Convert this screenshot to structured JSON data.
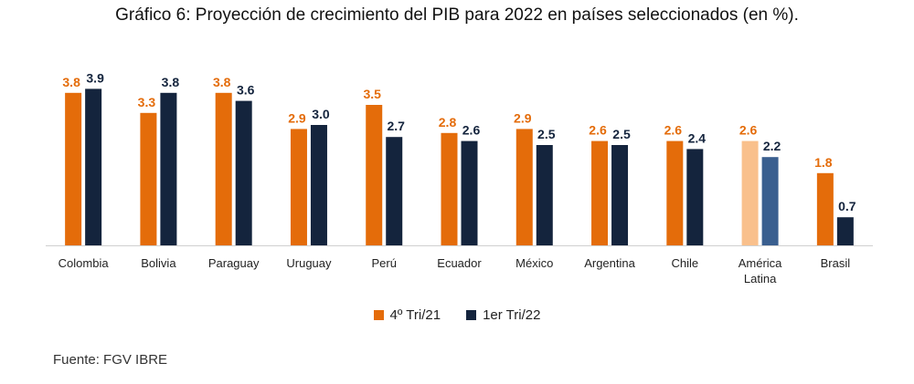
{
  "title": "Gráfico 6: Proyección de crecimiento del PIB para 2022 en países seleccionados (en %).",
  "source": "Fuente: FGV IBRE",
  "colors": {
    "series1": "#E46C0A",
    "series2": "#14243D",
    "series1_highlight": "#F9C08C",
    "series2_highlight": "#3A5F8F",
    "label1": "#E46C0A",
    "label2": "#14243D"
  },
  "chart_data": {
    "type": "bar",
    "title": "Gráfico 6: Proyección de crecimiento del PIB para 2022 en países seleccionados (en %).",
    "categories": [
      "Colombia",
      "Bolivia",
      "Paraguay",
      "Uruguay",
      "Perú",
      "Ecuador",
      "México",
      "Argentina",
      "Chile",
      "América Latina",
      "Brasil"
    ],
    "series": [
      {
        "name": "4º Tri/21",
        "values": [
          3.8,
          3.3,
          3.8,
          2.9,
          3.5,
          2.8,
          2.9,
          2.6,
          2.6,
          2.6,
          1.8
        ]
      },
      {
        "name": "1er Tri/22",
        "values": [
          3.9,
          3.8,
          3.6,
          3.0,
          2.7,
          2.6,
          2.5,
          2.5,
          2.4,
          2.2,
          0.7
        ]
      }
    ],
    "highlight_category": "América Latina",
    "ylim": [
      0,
      4.0
    ],
    "grid": false,
    "legend_position": "bottom"
  }
}
